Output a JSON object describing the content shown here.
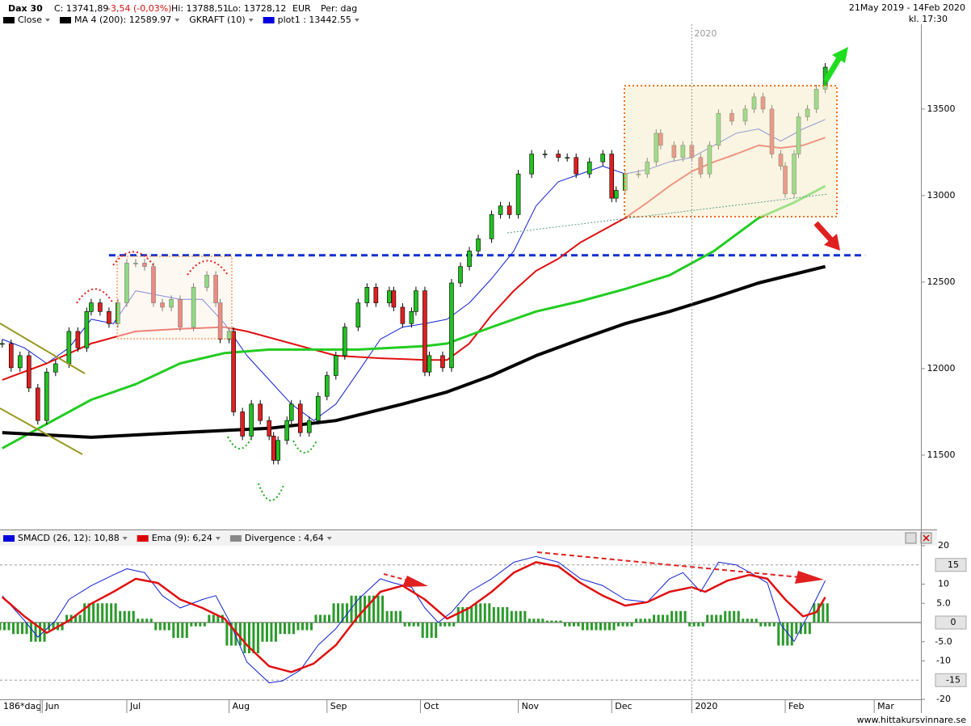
{
  "header": {
    "symbol": "Dax 30",
    "close": "C: 13741,89",
    "change": "-3,54 (-0,03%)",
    "high": "Hi: 13788,51",
    "low": "Lo: 13728,12",
    "currency": "EUR",
    "period": "Per: dag",
    "range": "21May 2019 - 14Feb 2020",
    "time": "kl. 17:30"
  },
  "chart_data": [
    {
      "type": "candlestick",
      "legend": [
        {
          "label": "Close",
          "color": "#000000"
        },
        {
          "label": "MA 4 (200): 12589.97",
          "color": "#000000"
        },
        {
          "label": "GKRAFT (10)"
        },
        {
          "label": "plot1 : 13442.55",
          "color": "#0000dd"
        }
      ],
      "xlim": [
        -0.5,
        206.5
      ],
      "xticks": [
        {
          "value": 9,
          "label": "Jun"
        },
        {
          "value": 28,
          "label": "Jul"
        },
        {
          "value": 51,
          "label": "Aug"
        },
        {
          "value": 73,
          "label": "Sep"
        },
        {
          "value": 94,
          "label": "Oct"
        },
        {
          "value": 116,
          "label": "Nov"
        },
        {
          "value": 137,
          "label": "Dec"
        },
        {
          "value": 155,
          "label": "2020"
        },
        {
          "value": 176,
          "label": "Feb"
        },
        {
          "value": 196,
          "label": "Mar"
        }
      ],
      "ylim": [
        11070,
        13990
      ],
      "yticks": [
        11500,
        12000,
        12500,
        13000,
        13500
      ],
      "hline": {
        "value": 12655,
        "color": "#1030d0"
      },
      "series": [
        {
          "name": "Close",
          "color": "#000000",
          "up_color": "#22c022",
          "down_color": "#dd2020",
          "x": [
            0,
            2,
            4,
            6,
            8,
            10,
            12,
            15,
            17,
            19,
            20,
            22,
            24,
            26,
            28,
            30,
            32,
            34,
            36,
            38,
            40,
            43,
            46,
            48,
            49,
            51,
            52,
            54,
            56,
            58,
            60,
            61,
            62,
            64,
            65,
            67,
            69,
            71,
            73,
            75,
            77,
            80,
            82,
            84,
            87,
            88,
            90,
            92,
            93,
            95,
            96,
            99,
            101,
            103,
            105,
            107,
            110,
            112,
            114,
            116,
            119,
            122,
            125,
            127,
            129,
            132,
            135,
            137,
            138,
            140,
            143,
            145,
            147,
            148,
            151,
            153,
            155,
            157,
            159,
            161,
            164,
            167,
            169,
            171,
            173,
            175,
            176,
            178,
            179,
            181,
            183,
            185
          ],
          "values": [
            12145,
            12005,
            12075,
            11888,
            11700,
            11980,
            12028,
            12215,
            12120,
            12330,
            12380,
            12330,
            12260,
            12380,
            12610,
            12610,
            12590,
            12380,
            12355,
            12400,
            12240,
            12470,
            12540,
            12380,
            12170,
            12215,
            11750,
            11610,
            11795,
            11700,
            11610,
            11470,
            11585,
            11700,
            11795,
            11630,
            11700,
            11840,
            11960,
            12075,
            12240,
            12380,
            12470,
            12380,
            12450,
            12355,
            12260,
            12330,
            12450,
            11980,
            12075,
            12005,
            12495,
            12590,
            12680,
            12750,
            12890,
            12940,
            12890,
            13125,
            13240,
            13240,
            13220,
            13220,
            13125,
            13195,
            13240,
            12985,
            13030,
            13125,
            13125,
            13195,
            13360,
            13290,
            13220,
            13290,
            13220,
            13125,
            13290,
            13475,
            13430,
            13500,
            13570,
            13500,
            13240,
            13170,
            13010,
            13240,
            13455,
            13500,
            13615,
            13742
          ]
        },
        {
          "color": "#000000",
          "width": 4,
          "x": [
            0,
            20,
            40,
            60,
            75,
            90,
            100,
            110,
            120,
            130,
            140,
            150,
            160,
            170,
            185
          ],
          "values": [
            11630,
            11603,
            11630,
            11655,
            11700,
            11795,
            11865,
            11960,
            12075,
            12170,
            12260,
            12330,
            12410,
            12495,
            12590
          ]
        },
        {
          "color": "#22cc22",
          "width": 3,
          "x": [
            0,
            10,
            20,
            30,
            40,
            50,
            60,
            80,
            95,
            100,
            110,
            120,
            130,
            140,
            150,
            160,
            170,
            178,
            185
          ],
          "values": [
            11540,
            11680,
            11820,
            11910,
            12030,
            12090,
            12110,
            12110,
            12130,
            12145,
            12240,
            12330,
            12390,
            12460,
            12540,
            12680,
            12870,
            12960,
            13055
          ]
        },
        {
          "color": "#e01010",
          "width": 2,
          "x": [
            0,
            10,
            20,
            30,
            40,
            50,
            55,
            65,
            75,
            85,
            95,
            100,
            105,
            110,
            115,
            120,
            125,
            130,
            135,
            140,
            145,
            150,
            155,
            160,
            165,
            170,
            175,
            180,
            185
          ],
          "values": [
            11935,
            12030,
            12145,
            12215,
            12230,
            12240,
            12215,
            12145,
            12075,
            12060,
            12050,
            12050,
            12145,
            12310,
            12450,
            12565,
            12635,
            12730,
            12800,
            12870,
            12960,
            13055,
            13140,
            13195,
            13240,
            13290,
            13275,
            13290,
            13335
          ]
        },
        {
          "color": "#1020d0",
          "width": 1,
          "x": [
            0,
            5,
            10,
            15,
            20,
            25,
            30,
            35,
            40,
            45,
            50,
            55,
            60,
            65,
            70,
            75,
            80,
            85,
            90,
            95,
            100,
            105,
            110,
            115,
            120,
            125,
            130,
            135,
            140,
            145,
            150,
            155,
            160,
            165,
            170,
            175,
            180,
            185
          ],
          "values": [
            12170,
            12120,
            12030,
            12120,
            12285,
            12260,
            12450,
            12425,
            12400,
            12400,
            12260,
            12075,
            11935,
            11795,
            11700,
            11795,
            11980,
            12170,
            12240,
            12260,
            12285,
            12380,
            12520,
            12680,
            12940,
            13080,
            13125,
            13170,
            13125,
            13150,
            13195,
            13220,
            13290,
            13360,
            13385,
            13315,
            13385,
            13440
          ]
        }
      ]
    },
    {
      "type": "macd",
      "legend": [
        {
          "label": "SMACD (26, 12): 10,88",
          "color": "#0000dd"
        },
        {
          "label": "Ema (9): 6,24",
          "color": "#dd0000"
        },
        {
          "label": "Divergence : 4,64",
          "color": "#888888"
        }
      ],
      "ylim": [
        -20,
        20
      ],
      "yticks": [
        20,
        10,
        {
          "value": 5,
          "label": "5.0"
        },
        {
          "value": -5,
          "label": "-5.0"
        },
        -10,
        -20
      ],
      "reference_lines": [
        15,
        0,
        -15
      ],
      "series": [
        {
          "color": "#1020d0",
          "width": 1,
          "x": [
            0,
            5,
            8,
            12,
            15,
            20,
            25,
            28,
            32,
            36,
            40,
            45,
            48,
            51,
            55,
            60,
            63,
            67,
            71,
            75,
            80,
            85,
            88,
            92,
            95,
            98,
            101,
            105,
            110,
            115,
            120,
            125,
            130,
            135,
            140,
            145,
            150,
            153,
            157,
            161,
            165,
            169,
            172,
            175,
            178,
            181,
            185
          ],
          "values": [
            7,
            0.5,
            -3.8,
            0.5,
            6,
            9.6,
            12.4,
            14,
            13,
            7,
            3.8,
            6,
            7,
            0.5,
            -10.3,
            -15.7,
            -15.2,
            -12.4,
            -5.9,
            -1.6,
            6,
            11.4,
            10.3,
            9.2,
            3.8,
            0,
            2.7,
            8,
            11.4,
            15.7,
            17.2,
            15.7,
            11.4,
            9.6,
            6,
            5.3,
            11.4,
            13,
            8,
            15.7,
            15,
            12.4,
            10.3,
            -0.5,
            -4.9,
            1.6,
            10.9
          ]
        },
        {
          "color": "#e01010",
          "width": 2.5,
          "x": [
            0,
            5,
            10,
            15,
            20,
            25,
            30,
            35,
            40,
            45,
            50,
            55,
            60,
            65,
            70,
            75,
            80,
            85,
            90,
            95,
            100,
            105,
            110,
            115,
            120,
            125,
            130,
            135,
            140,
            145,
            150,
            155,
            158,
            163,
            168,
            172,
            176,
            180,
            183,
            185
          ],
          "values": [
            6.6,
            1.6,
            -2.7,
            0.5,
            4.9,
            8,
            11.4,
            10.3,
            6,
            3.8,
            1,
            -5.9,
            -11.4,
            -12.9,
            -10.7,
            -5.9,
            1.6,
            8,
            9.6,
            6,
            1,
            3.8,
            8,
            13,
            15.7,
            14.6,
            10.3,
            7,
            4.4,
            5.3,
            8,
            9.2,
            8,
            10.9,
            12.4,
            11.4,
            6,
            1.6,
            2.7,
            6.6
          ]
        },
        {
          "type": "histogram",
          "color": "#2a9a2a",
          "x": [
            0,
            4,
            8,
            12,
            16,
            20,
            24,
            28,
            32,
            36,
            40,
            44,
            48,
            52,
            56,
            60,
            64,
            68,
            72,
            76,
            80,
            84,
            88,
            92,
            96,
            100,
            104,
            108,
            112,
            116,
            120,
            124,
            128,
            132,
            136,
            140,
            144,
            148,
            152,
            156,
            160,
            164,
            168,
            172,
            176,
            180,
            184
          ],
          "values": [
            -2,
            -3,
            -5,
            -2,
            2,
            5,
            5,
            3,
            1,
            -2,
            -4,
            -1,
            2,
            -6,
            -8,
            -5,
            -3,
            -2,
            2,
            5,
            7,
            7,
            3,
            -1,
            -4,
            -1,
            4,
            5,
            4,
            3,
            1,
            0.5,
            -1,
            -2,
            -2,
            -1,
            1,
            2,
            3,
            -1,
            2,
            3,
            1,
            -1,
            -6,
            -3,
            5
          ]
        }
      ]
    }
  ],
  "footer": {
    "days": "186*dag",
    "site": "www.hittakursvinnare.se"
  }
}
